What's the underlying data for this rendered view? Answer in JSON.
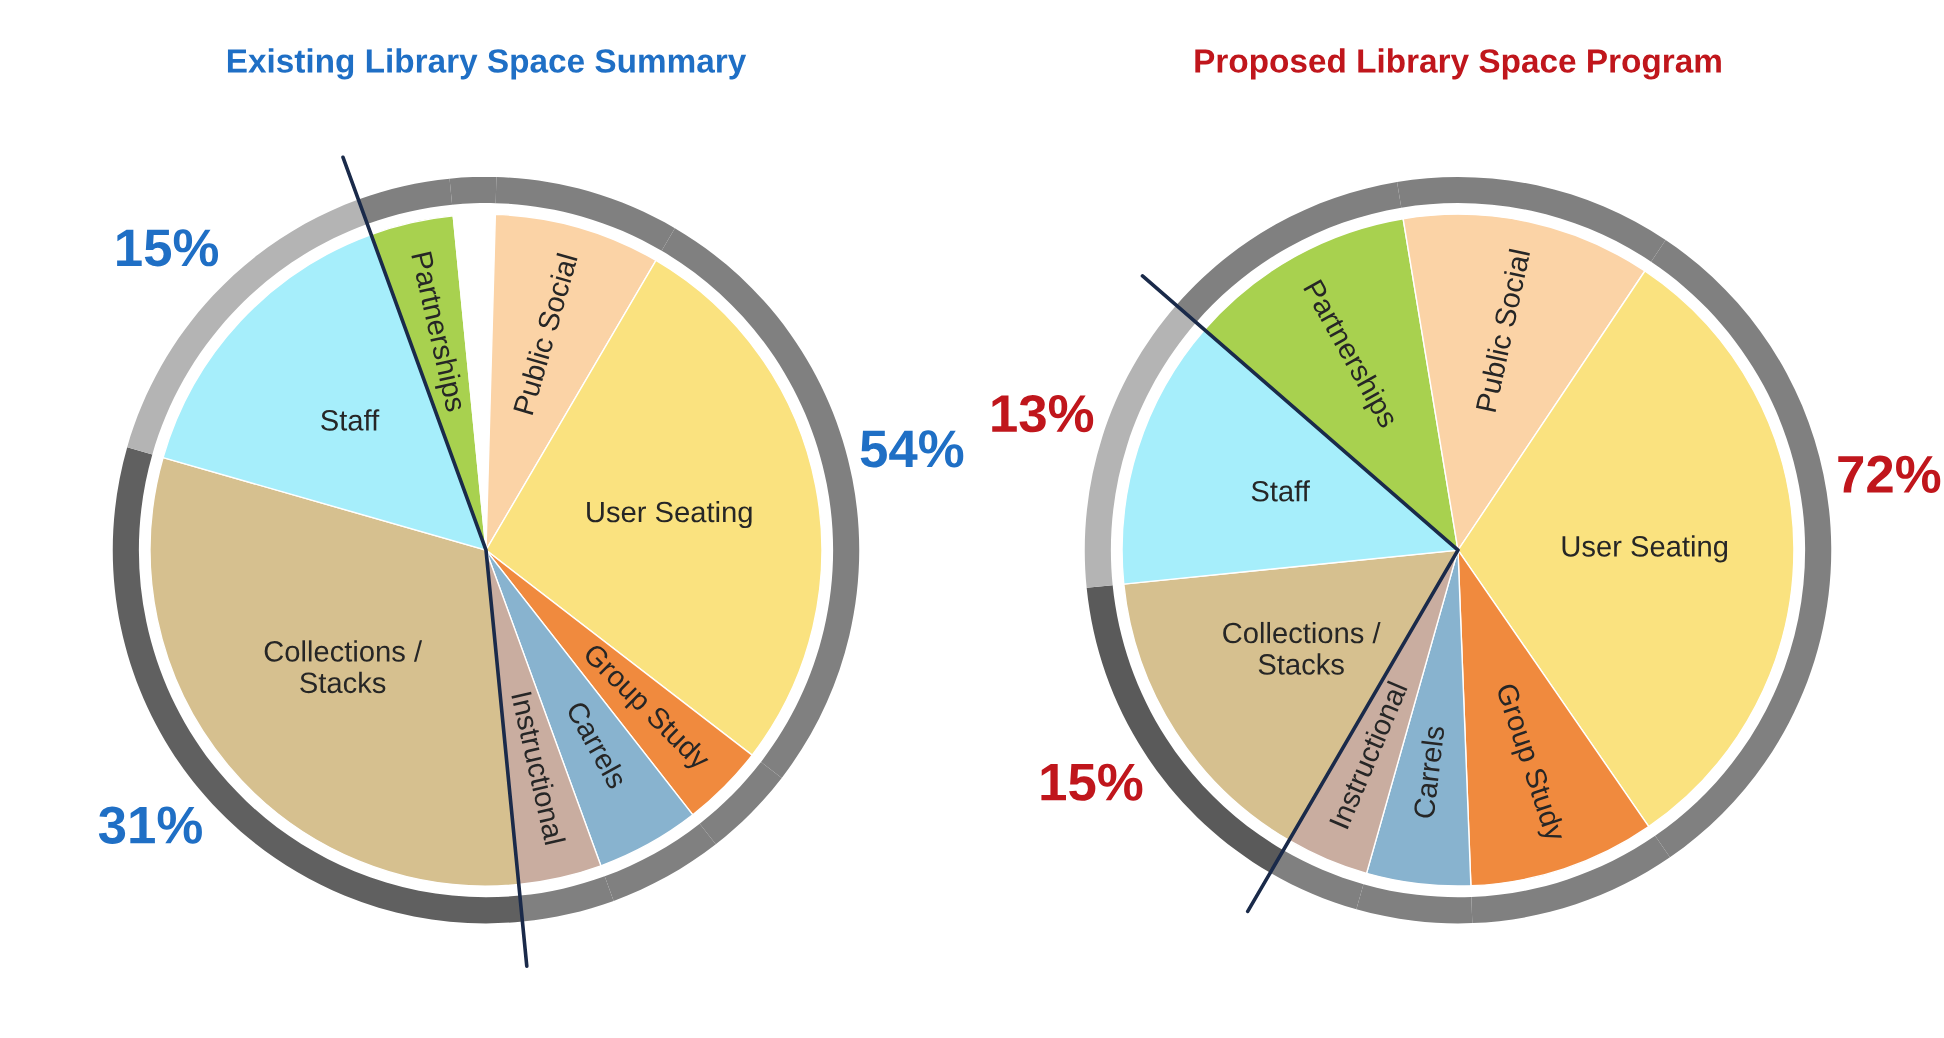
{
  "chart_data": [
    {
      "type": "pie",
      "title": "Existing Library Space Summary",
      "categories": [
        "Partnerships",
        null,
        "Public Social",
        "User Seating",
        "Group Study",
        "Carrels",
        "Instructional",
        "Collections /\nStacks",
        "Staff"
      ],
      "annotations": [
        "54%",
        "31%",
        "15%"
      ],
      "series": [
        {
          "type": "pie",
          "values": [
            4,
            2,
            8,
            27,
            4,
            5,
            4,
            31,
            15
          ],
          "colors": [
            "#a8d14f",
            "#ffffff",
            "#fbd3a6",
            "#fae27f",
            "#f08a3e",
            "#88b3cf",
            "#c9ada0",
            "#d6c08f",
            "#a6eefb"
          ]
        },
        {
          "type": "donut",
          "values": [
            4,
            2,
            8,
            27,
            4,
            5,
            4,
            31,
            15
          ],
          "colors": [
            "#808080",
            "#808080",
            "#808080",
            "#808080",
            "#808080",
            "#808080",
            "#808080",
            "#606060",
            "#b4b4b4"
          ]
        }
      ]
    },
    {
      "type": "pie",
      "title": "Proposed Library Space Program",
      "categories": [
        "Partnerships",
        "Public Social",
        "User Seating",
        "Group Study",
        "Carrels",
        "Instructional",
        "Collections /\nStacks",
        "Staff"
      ],
      "annotations": [
        "72%",
        "15%",
        "13%"
      ],
      "series": [
        {
          "type": "pie",
          "values": [
            11,
            12,
            31,
            9,
            5,
            4,
            15,
            13
          ],
          "colors": [
            "#a8d14f",
            "#fbd3a6",
            "#fae27f",
            "#f08a3e",
            "#88b3cf",
            "#c9ada0",
            "#d6c08f",
            "#a6eefb"
          ]
        },
        {
          "type": "donut",
          "values": [
            11,
            12,
            31,
            9,
            5,
            4,
            15,
            13
          ],
          "colors": [
            "#808080",
            "#808080",
            "#808080",
            "#808080",
            "#808080",
            "#808080",
            "#5a5a5a",
            "#b4b4b4"
          ]
        }
      ]
    }
  ]
}
